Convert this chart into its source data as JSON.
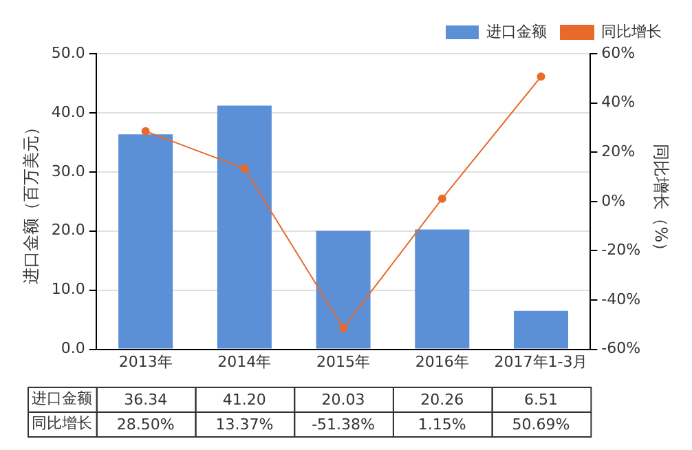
{
  "chart_data": {
    "type": "bar",
    "ylabel": "进口金额（百万美元）",
    "y2label": "同比增长（%）",
    "categories": [
      "2013年",
      "2014年",
      "2015年",
      "2016年",
      "2017年1-3月"
    ],
    "series": [
      {
        "name": "进口金额",
        "color": "#5b8fd6",
        "values": [
          36.34,
          41.2,
          20.03,
          20.26,
          6.51
        ],
        "value_labels": [
          "36.34",
          "41.20",
          "20.03",
          "20.26",
          "6.51"
        ]
      },
      {
        "name": "同比增长",
        "type": "line",
        "axis": "y2",
        "color": "#e8692a",
        "marker": "circle",
        "values": [
          28.5,
          13.37,
          -51.38,
          1.15,
          50.69
        ],
        "value_labels": [
          "28.50%",
          "13.37%",
          "-51.38%",
          "1.15%",
          "50.69%"
        ]
      }
    ],
    "ylim": [
      0,
      50
    ],
    "yticks": [
      {
        "value": 0,
        "label": "0.0"
      },
      {
        "value": 10,
        "label": "10.0"
      },
      {
        "value": 20,
        "label": "20.0"
      },
      {
        "value": 30,
        "label": "30.0"
      },
      {
        "value": 40,
        "label": "40.0"
      },
      {
        "value": 50,
        "label": "50.0"
      }
    ],
    "y2lim": [
      -60,
      60
    ],
    "y2ticks": [
      {
        "value": -60,
        "label": "-60%"
      },
      {
        "value": -40,
        "label": "-40%"
      },
      {
        "value": -20,
        "label": "-20%"
      },
      {
        "value": 0,
        "label": "0%"
      },
      {
        "value": 20,
        "label": "20%"
      },
      {
        "value": 40,
        "label": "40%"
      },
      {
        "value": 60,
        "label": "60%"
      }
    ],
    "grid": "y",
    "legend": "top right"
  }
}
